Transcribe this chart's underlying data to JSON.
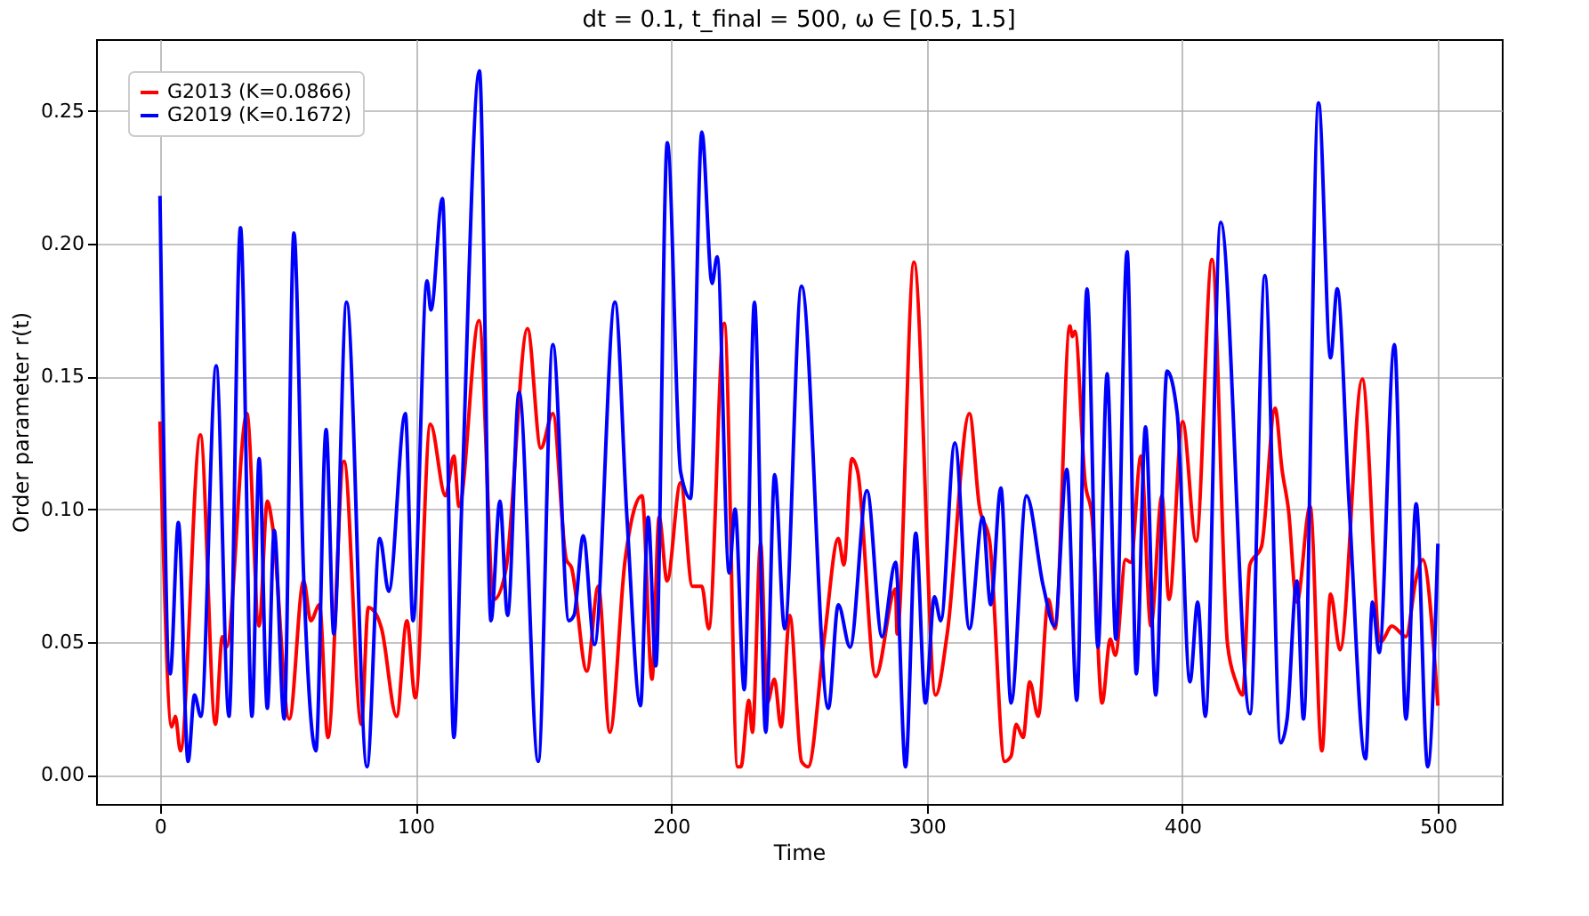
{
  "chart_data": {
    "type": "line",
    "title": "dt = 0.1, t_final = 500, ω ∈ [0.5, 1.5]",
    "xlabel": "Time",
    "ylabel": "Order parameter r(t)",
    "xlim": [
      -25,
      525
    ],
    "ylim": [
      -0.011,
      0.277
    ],
    "xticks": [
      0,
      100,
      200,
      300,
      400,
      500
    ],
    "yticks": [
      {
        "value": 0,
        "label": "0.00"
      },
      {
        "value": 0.05,
        "label": "0.05"
      },
      {
        "value": 0.1,
        "label": "0.10"
      },
      {
        "value": 0.15,
        "label": "0.15"
      },
      {
        "value": 0.2,
        "label": "0.20"
      },
      {
        "value": 0.25,
        "label": "0.25"
      }
    ],
    "grid": true,
    "legend": "top left",
    "line_style": "solid",
    "marker": "none",
    "series": [
      {
        "name": "G2013 (K=0.0866)",
        "color": "#ff0000",
        "x": [
          0,
          4.6,
          6,
          8,
          15.8,
          21.7,
          24.4,
          26,
          34,
          38.8,
          42,
          44,
          50.6,
          56.2,
          59,
          62.4,
          65.7,
          72,
          78.8,
          81.5,
          84.8,
          86.7,
          92.6,
          96.6,
          99.9,
          105.8,
          111.7,
          115,
          117,
          124.8,
          130.7,
          135.3,
          143.8,
          149,
          153.7,
          159,
          161,
          167,
          171.5,
          176,
          182,
          188.6,
          192.5,
          195.3,
          198.4,
          203.7,
          208.3,
          212,
          214.7,
          220.8,
          226,
          227.3,
          230.4,
          231.8,
          235,
          237.6,
          240.4,
          243,
          246.4,
          251,
          253.6,
          260,
          265.4,
          267.6,
          270.7,
          273,
          280,
          287.8,
          288.4,
          295,
          303.5,
          308,
          316.7,
          320.6,
          324.6,
          330.5,
          333,
          335,
          337.7,
          340.3,
          343.6,
          347.6,
          350.2,
          356,
          357,
          358,
          362,
          364.7,
          368.6,
          371.8,
          373.8,
          377.8,
          379.8,
          383.8,
          387.7,
          392,
          394.8,
          400.1,
          405.4,
          411.6,
          417.7,
          421,
          423.6,
          426.4,
          431,
          436.3,
          439,
          441.5,
          444.8,
          450,
          454.6,
          458,
          461.7,
          470.4,
          477.6,
          482,
          487.5,
          491.5,
          494,
          500
        ],
        "values": [
          0.133,
          0.018,
          0.022,
          0.009,
          0.128,
          0.019,
          0.052,
          0.048,
          0.136,
          0.056,
          0.103,
          0.094,
          0.021,
          0.073,
          0.058,
          0.064,
          0.014,
          0.118,
          0.019,
          0.063,
          0.06,
          0.055,
          0.022,
          0.058,
          0.029,
          0.132,
          0.105,
          0.12,
          0.101,
          0.171,
          0.066,
          0.077,
          0.168,
          0.123,
          0.136,
          0.081,
          0.078,
          0.039,
          0.071,
          0.016,
          0.081,
          0.105,
          0.036,
          0.097,
          0.073,
          0.11,
          0.071,
          0.071,
          0.055,
          0.17,
          0.003,
          0.003,
          0.028,
          0.016,
          0.087,
          0.027,
          0.036,
          0.018,
          0.06,
          0.005,
          0.003,
          0.052,
          0.089,
          0.079,
          0.119,
          0.114,
          0.037,
          0.07,
          0.053,
          0.193,
          0.03,
          0.053,
          0.136,
          0.101,
          0.088,
          0.005,
          0.007,
          0.019,
          0.014,
          0.035,
          0.022,
          0.066,
          0.055,
          0.169,
          0.165,
          0.167,
          0.11,
          0.097,
          0.027,
          0.051,
          0.045,
          0.081,
          0.08,
          0.12,
          0.056,
          0.105,
          0.066,
          0.133,
          0.088,
          0.194,
          0.049,
          0.035,
          0.03,
          0.079,
          0.086,
          0.138,
          0.115,
          0.1,
          0.065,
          0.101,
          0.009,
          0.068,
          0.047,
          0.149,
          0.05,
          0.056,
          0.052,
          0.074,
          0.081,
          0.026
        ]
      },
      {
        "name": "G2019 (K=0.1672)",
        "color": "#0000ff",
        "x": [
          0,
          4,
          7.2,
          11,
          13.5,
          16,
          22,
          27,
          31.5,
          36,
          38.8,
          42,
          44.7,
          48.6,
          52.4,
          56.2,
          61,
          65,
          68,
          73,
          81,
          86,
          89.5,
          96,
          99,
          104.5,
          106,
          110.5,
          115,
          118,
          125,
          129.5,
          133,
          136,
          140.5,
          148,
          153.7,
          160,
          162,
          165.6,
          170,
          178,
          182.7,
          188,
          191,
          194,
          198.5,
          203.7,
          207.6,
          212,
          216,
          218,
          222.7,
          225,
          228.6,
          232.6,
          237,
          240.5,
          244.4,
          251,
          261.5,
          265.4,
          270,
          276.6,
          282.5,
          287.8,
          291.7,
          295.7,
          299.5,
          303,
          305.5,
          311,
          316.7,
          321.9,
          325,
          329,
          333,
          339,
          345.6,
          350,
          354.8,
          358.7,
          362.7,
          367,
          370.6,
          374,
          378.4,
          382,
          385.6,
          389.6,
          394,
          398,
          403,
          406,
          409,
          415,
          426.5,
          432.3,
          438.5,
          441,
          444.8,
          447.4,
          453.3,
          458,
          460.6,
          465.2,
          471.7,
          474.4,
          477,
          483,
          487.5,
          491.5,
          496,
          500
        ],
        "values": [
          0.218,
          0.038,
          0.095,
          0.005,
          0.03,
          0.022,
          0.154,
          0.022,
          0.206,
          0.022,
          0.119,
          0.025,
          0.092,
          0.021,
          0.204,
          0.075,
          0.009,
          0.13,
          0.053,
          0.178,
          0.003,
          0.089,
          0.069,
          0.136,
          0.058,
          0.186,
          0.175,
          0.217,
          0.014,
          0.1,
          0.265,
          0.058,
          0.103,
          0.06,
          0.144,
          0.005,
          0.162,
          0.058,
          0.06,
          0.09,
          0.049,
          0.178,
          0.097,
          0.026,
          0.097,
          0.041,
          0.238,
          0.114,
          0.104,
          0.242,
          0.185,
          0.195,
          0.076,
          0.1,
          0.032,
          0.178,
          0.016,
          0.113,
          0.055,
          0.184,
          0.025,
          0.064,
          0.048,
          0.107,
          0.052,
          0.08,
          0.003,
          0.091,
          0.027,
          0.067,
          0.058,
          0.125,
          0.055,
          0.097,
          0.064,
          0.108,
          0.027,
          0.105,
          0.071,
          0.056,
          0.115,
          0.028,
          0.183,
          0.048,
          0.151,
          0.051,
          0.197,
          0.038,
          0.131,
          0.03,
          0.152,
          0.136,
          0.035,
          0.065,
          0.022,
          0.208,
          0.023,
          0.188,
          0.012,
          0.021,
          0.073,
          0.021,
          0.253,
          0.157,
          0.183,
          0.103,
          0.006,
          0.065,
          0.046,
          0.162,
          0.021,
          0.102,
          0.003,
          0.087
        ]
      }
    ]
  }
}
